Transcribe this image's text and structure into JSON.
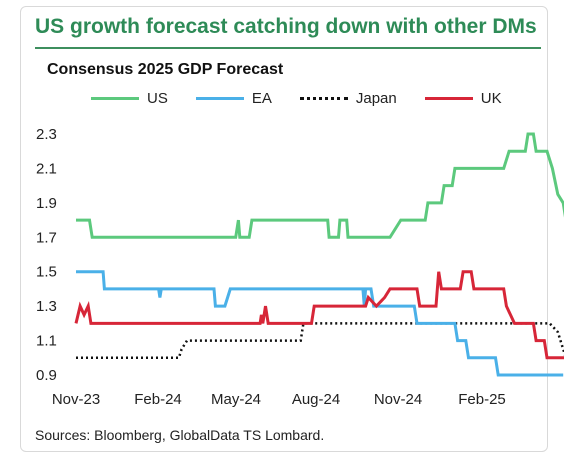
{
  "headline": "US growth forecast catching down with other DMs",
  "source": "Sources: Bloomberg, GlobalData TS Lombard.",
  "chart_data": {
    "type": "line",
    "title": "Consensus 2025 GDP Forecast",
    "xlabel": "",
    "ylabel": "",
    "x_ticks": [
      "Nov-23",
      "Feb-24",
      "May-24",
      "Aug-24",
      "Nov-24",
      "Feb-25"
    ],
    "y_ticks": [
      "0.9",
      "1.1",
      "1.3",
      "1.5",
      "1.7",
      "1.9",
      "2.1",
      "2.3"
    ],
    "ylim": [
      0.9,
      2.3
    ],
    "xlim": [
      0,
      17.4
    ],
    "x_unit": "months since Nov-23",
    "grid": false,
    "legend": "top",
    "series": [
      {
        "name": "US",
        "color": "#5cc97d",
        "style": "solid",
        "points": [
          [
            0,
            1.8
          ],
          [
            0.5,
            1.8
          ],
          [
            0.6,
            1.7
          ],
          [
            5.9,
            1.7
          ],
          [
            6.0,
            1.8
          ],
          [
            6.05,
            1.7
          ],
          [
            6.4,
            1.7
          ],
          [
            6.5,
            1.8
          ],
          [
            9.3,
            1.8
          ],
          [
            9.35,
            1.7
          ],
          [
            9.7,
            1.7
          ],
          [
            9.75,
            1.8
          ],
          [
            10.0,
            1.8
          ],
          [
            10.05,
            1.7
          ],
          [
            11.6,
            1.7
          ],
          [
            12.0,
            1.8
          ],
          [
            12.9,
            1.8
          ],
          [
            13.0,
            1.9
          ],
          [
            13.5,
            1.9
          ],
          [
            13.6,
            2.0
          ],
          [
            13.9,
            2.0
          ],
          [
            14.0,
            2.1
          ],
          [
            15.8,
            2.1
          ],
          [
            16.0,
            2.2
          ],
          [
            16.6,
            2.2
          ],
          [
            16.7,
            2.3
          ],
          [
            16.9,
            2.3
          ],
          [
            17.0,
            2.2
          ],
          [
            17.4,
            2.2
          ],
          [
            17.6,
            2.1
          ],
          [
            17.8,
            1.95
          ],
          [
            18.0,
            1.9
          ],
          [
            18.1,
            1.8
          ]
        ]
      },
      {
        "name": "EA",
        "color": "#4ab0e8",
        "style": "solid",
        "points": [
          [
            0,
            1.5
          ],
          [
            1.0,
            1.5
          ],
          [
            1.05,
            1.4
          ],
          [
            3.05,
            1.4
          ],
          [
            3.1,
            1.35
          ],
          [
            3.15,
            1.4
          ],
          [
            5.1,
            1.4
          ],
          [
            5.15,
            1.3
          ],
          [
            5.5,
            1.3
          ],
          [
            5.6,
            1.35
          ],
          [
            5.7,
            1.4
          ],
          [
            10.6,
            1.4
          ],
          [
            10.65,
            1.3
          ],
          [
            10.7,
            1.4
          ],
          [
            10.9,
            1.4
          ],
          [
            11.0,
            1.3
          ],
          [
            12.5,
            1.3
          ],
          [
            12.6,
            1.2
          ],
          [
            14.0,
            1.2
          ],
          [
            14.1,
            1.1
          ],
          [
            14.4,
            1.1
          ],
          [
            14.5,
            1.0
          ],
          [
            15.5,
            1.0
          ],
          [
            15.6,
            0.9
          ],
          [
            18.0,
            0.9
          ]
        ]
      },
      {
        "name": "Japan",
        "color": "#111111",
        "style": "dotted",
        "points": [
          [
            0,
            1.0
          ],
          [
            3.8,
            1.0
          ],
          [
            3.9,
            1.05
          ],
          [
            4.1,
            1.1
          ],
          [
            8.3,
            1.1
          ],
          [
            8.4,
            1.2
          ],
          [
            17.5,
            1.2
          ],
          [
            17.8,
            1.15
          ],
          [
            18.0,
            1.05
          ],
          [
            18.1,
            1.0
          ]
        ]
      },
      {
        "name": "UK",
        "color": "#d72638",
        "style": "solid",
        "points": [
          [
            0,
            1.2
          ],
          [
            0.15,
            1.3
          ],
          [
            0.3,
            1.25
          ],
          [
            0.45,
            1.3
          ],
          [
            0.55,
            1.2
          ],
          [
            6.8,
            1.2
          ],
          [
            6.85,
            1.25
          ],
          [
            6.9,
            1.2
          ],
          [
            7.0,
            1.3
          ],
          [
            7.1,
            1.2
          ],
          [
            8.7,
            1.2
          ],
          [
            8.8,
            1.3
          ],
          [
            10.7,
            1.3
          ],
          [
            10.8,
            1.35
          ],
          [
            11.1,
            1.3
          ],
          [
            11.4,
            1.35
          ],
          [
            11.6,
            1.4
          ],
          [
            12.6,
            1.4
          ],
          [
            12.7,
            1.3
          ],
          [
            13.3,
            1.3
          ],
          [
            13.4,
            1.5
          ],
          [
            13.5,
            1.4
          ],
          [
            14.2,
            1.4
          ],
          [
            14.3,
            1.5
          ],
          [
            14.6,
            1.5
          ],
          [
            14.7,
            1.4
          ],
          [
            15.8,
            1.4
          ],
          [
            15.9,
            1.3
          ],
          [
            16.2,
            1.2
          ],
          [
            16.9,
            1.2
          ],
          [
            17.0,
            1.1
          ],
          [
            17.3,
            1.1
          ],
          [
            17.4,
            1.0
          ],
          [
            18.1,
            1.0
          ]
        ]
      }
    ]
  }
}
